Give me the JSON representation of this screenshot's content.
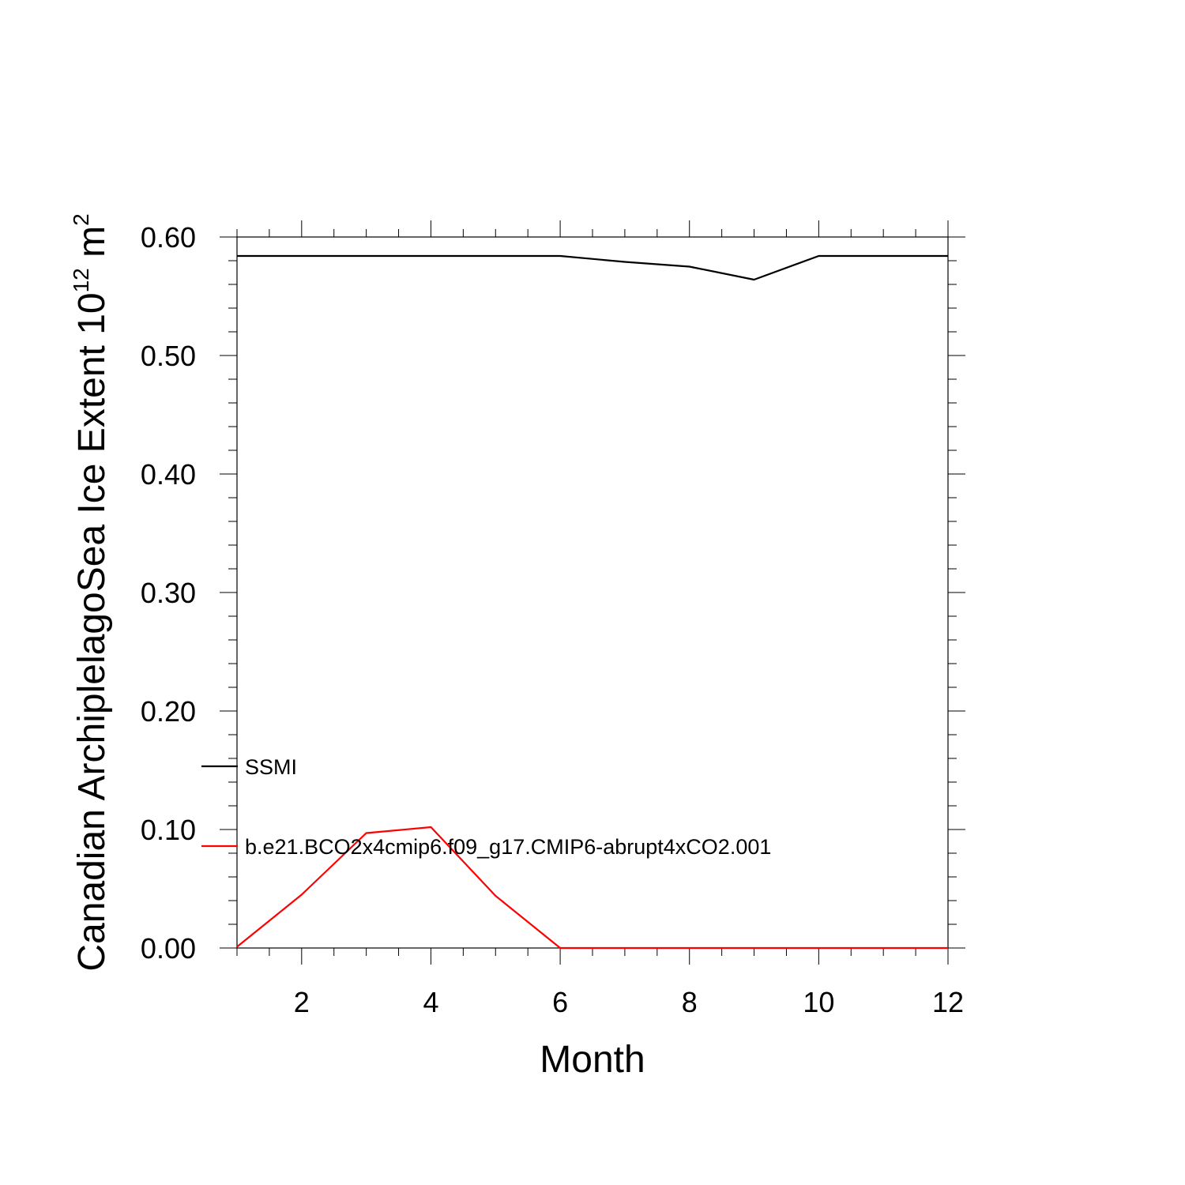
{
  "chart_data": {
    "type": "line",
    "xlabel": "Month",
    "ylabel": {
      "prefix": "Canadian ArchiplelagoSea Ice Extent 10",
      "exponent": "12",
      "unit": " m",
      "unit_exponent": "2"
    },
    "xlim": [
      1,
      12
    ],
    "ylim": [
      0,
      0.6
    ],
    "xticks": [
      2,
      4,
      6,
      8,
      10,
      12
    ],
    "xtick_labels": [
      "2",
      "4",
      "6",
      "8",
      "10",
      "12"
    ],
    "yticks": [
      0,
      0.1,
      0.2,
      0.3,
      0.4,
      0.5,
      0.6
    ],
    "ytick_labels": [
      "0.00",
      "0.10",
      "0.20",
      "0.30",
      "0.40",
      "0.50",
      "0.60"
    ],
    "grid": false,
    "legend_position": "left-bottom, inside plot",
    "x": [
      1,
      2,
      3,
      4,
      5,
      6,
      7,
      8,
      9,
      10,
      11,
      12
    ],
    "series": [
      {
        "name": "SSMI",
        "color": "#000000",
        "values": [
          0.584,
          0.584,
          0.584,
          0.584,
          0.584,
          0.584,
          0.579,
          0.575,
          0.564,
          0.584,
          0.584,
          0.584
        ]
      },
      {
        "name": "b.e21.BCO2x4cmip6.f09_g17.CMIP6-abrupt4xCO2.001",
        "color": "#ff0000",
        "values": [
          0.001,
          0.045,
          0.097,
          0.102,
          0.044,
          0.0,
          0.0,
          0.0,
          0.0,
          0.0,
          0.0,
          0.0
        ]
      }
    ]
  }
}
